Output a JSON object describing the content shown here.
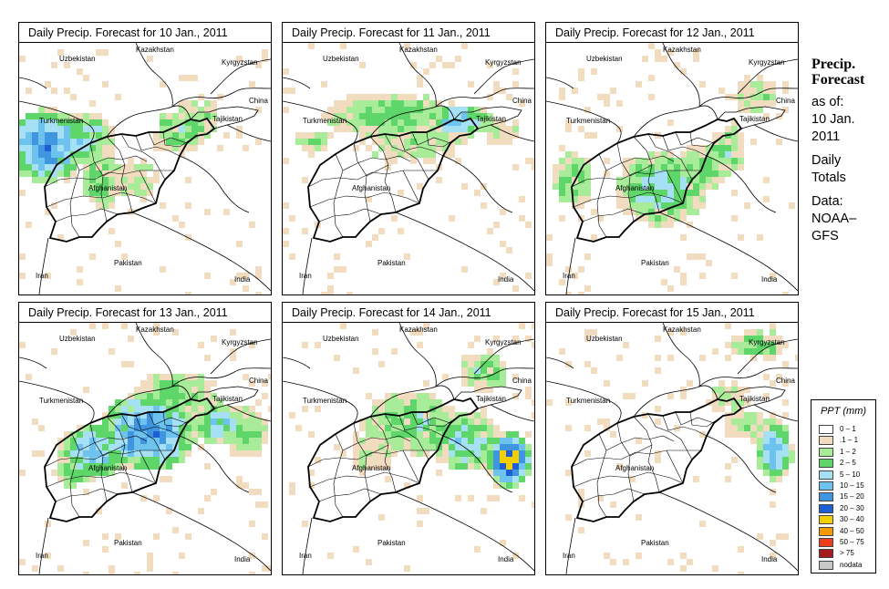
{
  "panels": [
    {
      "title": "Daily Precip. Forecast for  10 Jan., 2011"
    },
    {
      "title": "Daily Precip. Forecast for  11 Jan., 2011"
    },
    {
      "title": "Daily Precip. Forecast for  12 Jan., 2011"
    },
    {
      "title": "Daily Precip. Forecast for  13 Jan., 2011"
    },
    {
      "title": "Daily Precip. Forecast for  14 Jan., 2011"
    },
    {
      "title": "Daily Precip. Forecast for  15 Jan., 2011"
    }
  ],
  "labels": {
    "uzbekistan": "Uzbekistan",
    "kazakhstan": "Kazakhstan",
    "kyrgyzstan": "Kyrgyzstan",
    "china": "China",
    "turkmenistan": "Turkmenistan",
    "tajikistan": "Tajikistan",
    "afghanistan": "Afghanistan",
    "iran": "Iran",
    "pakistan": "Pakistan",
    "india": "India"
  },
  "side": {
    "title_line1": "Precip.",
    "title_line2": "Forecast",
    "as_of": "as of:",
    "date_line1": "10 Jan.",
    "date_line2": "2011",
    "daily": "Daily",
    "totals": "Totals",
    "data_label": "Data:",
    "source_line1": "NOAA–",
    "source_line2": "GFS"
  },
  "legend": {
    "title": "PPT (mm)",
    "items": [
      {
        "label": "0 – 1",
        "color": "#ffffff"
      },
      {
        "label": ".1 – 1",
        "color": "#f2dcbf"
      },
      {
        "label": "1 – 2",
        "color": "#a8ec9a"
      },
      {
        "label": "2 – 5",
        "color": "#5ed66a"
      },
      {
        "label": "5 – 10",
        "color": "#a6e0f4"
      },
      {
        "label": "10 – 15",
        "color": "#6ec2ee"
      },
      {
        "label": "15 – 20",
        "color": "#3f95e0"
      },
      {
        "label": "20 – 30",
        "color": "#1e5fd4"
      },
      {
        "label": "30 – 40",
        "color": "#f2d000"
      },
      {
        "label": "40 – 50",
        "color": "#f59a00"
      },
      {
        "label": "50 – 75",
        "color": "#ee3d1c"
      },
      {
        "label": "> 75",
        "color": "#a61c1c"
      },
      {
        "label": "nodata",
        "color": "#c8c8c8"
      }
    ]
  }
}
